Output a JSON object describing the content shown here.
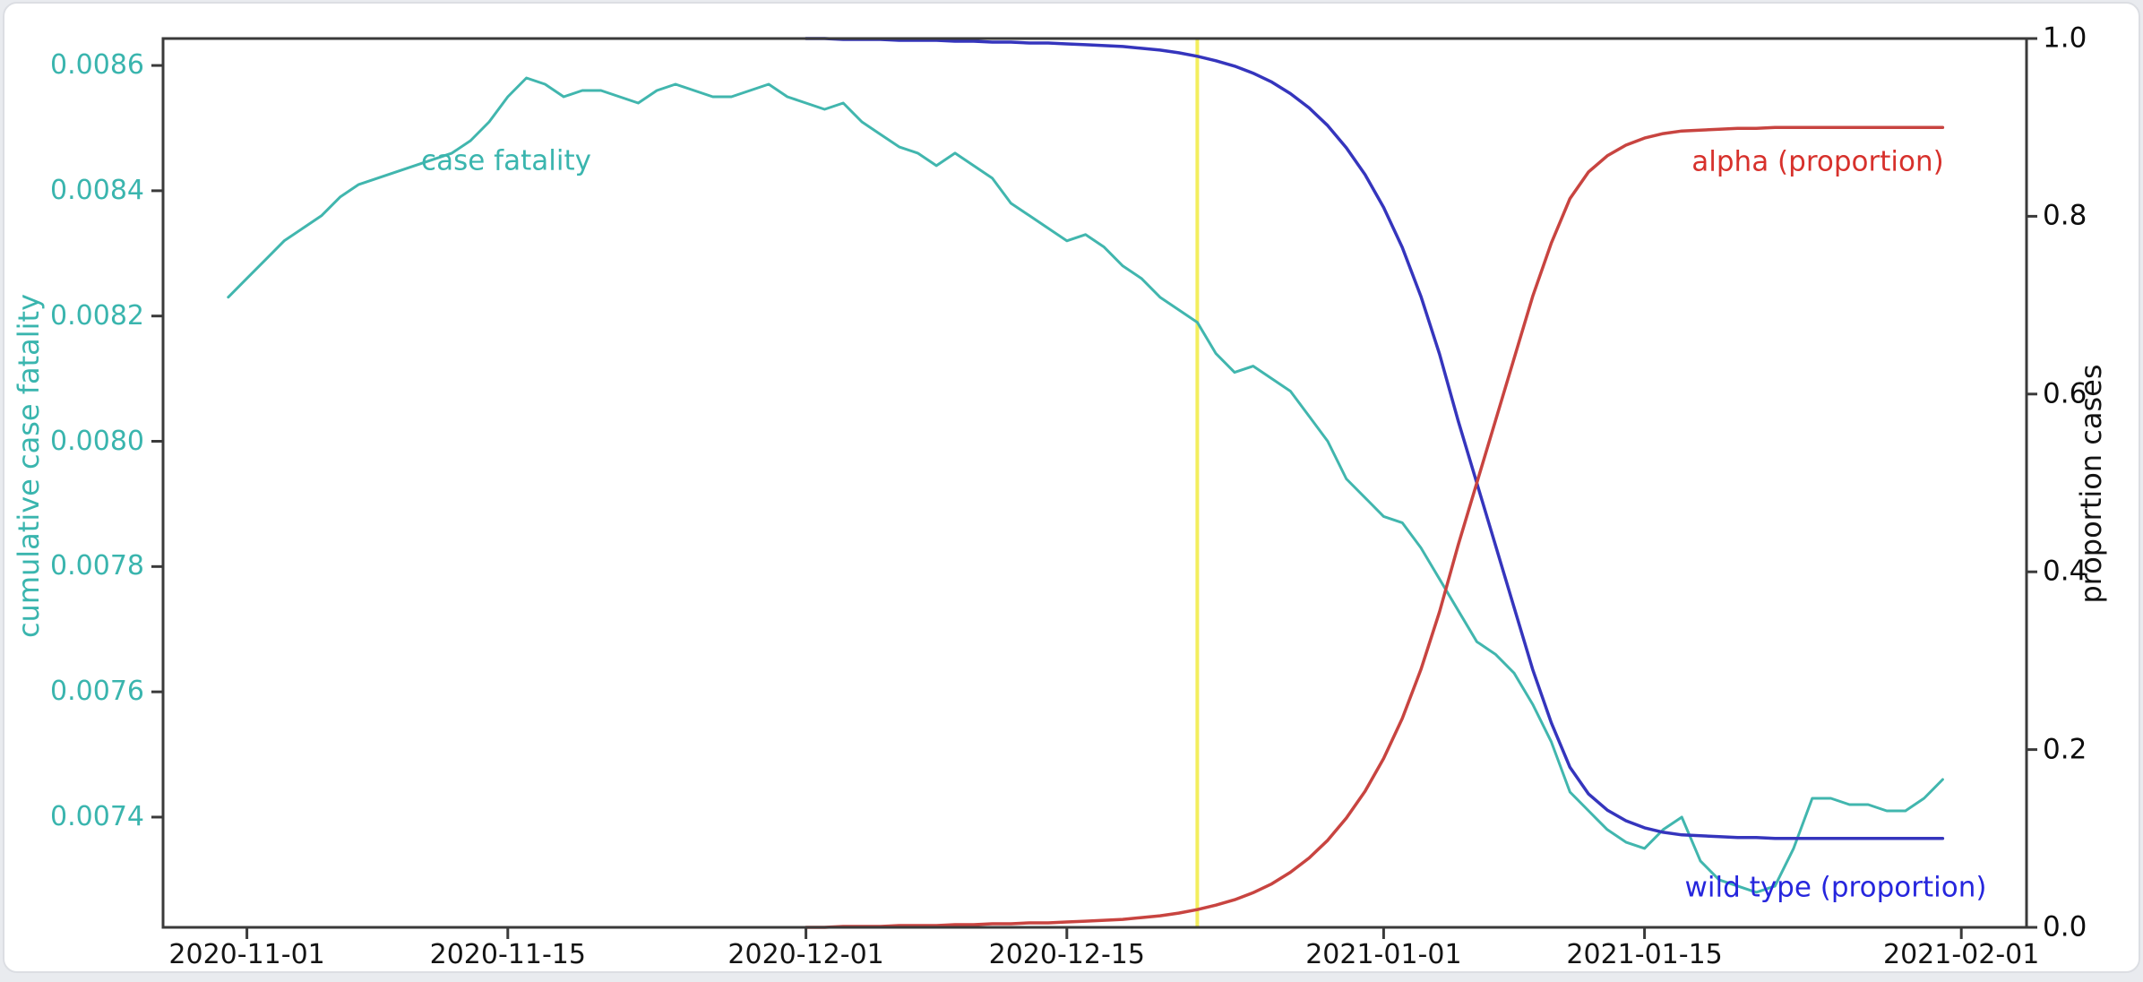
{
  "chart_data": {
    "type": "line",
    "title": "",
    "xlabel": "",
    "ylabel_left": "cumulative case fatality",
    "ylabel_right": "proportion cases",
    "xlim": [
      "2020-10-27T12:00:00Z",
      "2021-02-04T12:00:00Z"
    ],
    "ylim_left": [
      0.007224,
      0.008643
    ],
    "ylim_right": [
      0.0,
      1.0
    ],
    "grid": false,
    "x_ticks": [
      "2020-11-01",
      "2020-11-15",
      "2020-12-01",
      "2020-12-15",
      "2021-01-01",
      "2021-01-15",
      "2021-02-01"
    ],
    "y_ticks_left": [
      {
        "value": 0.0086,
        "label": "0.0086"
      },
      {
        "value": 0.0084,
        "label": "0.0084"
      },
      {
        "value": 0.0082,
        "label": "0.0082"
      },
      {
        "value": 0.008,
        "label": "0.0080"
      },
      {
        "value": 0.0078,
        "label": "0.0078"
      },
      {
        "value": 0.0076,
        "label": "0.0076"
      },
      {
        "value": 0.0074,
        "label": "0.0074"
      }
    ],
    "y_ticks_right": [
      {
        "value": 1.0,
        "label": "1.0"
      },
      {
        "value": 0.8,
        "label": "0.8"
      },
      {
        "value": 0.6,
        "label": "0.6"
      },
      {
        "value": 0.4,
        "label": "0.4"
      },
      {
        "value": 0.2,
        "label": "0.2"
      },
      {
        "value": 0.0,
        "label": "0.0"
      }
    ],
    "vline": {
      "date": "2020-12-22T00:00:00Z",
      "color": "#f3ee5e"
    },
    "colors": {
      "case_fatality": "#41b6ae",
      "wild_type": "#3535bd",
      "alpha": "#c84440",
      "axis": "#3a3a3a",
      "left_axis_text": "#3ab5ae",
      "tick_text": "#141414",
      "alpha_label": "#d7312c",
      "wild_type_label": "#2626dd",
      "vline": "#f3ee5e"
    },
    "annotations": [
      {
        "id": "case_fatality",
        "text": "case fatality"
      },
      {
        "id": "alpha",
        "text": "alpha (proportion)"
      },
      {
        "id": "wild_type",
        "text": "wild type (proportion)"
      }
    ],
    "series": [
      {
        "name": "case fatality",
        "axis": "left",
        "color_key": "case_fatality",
        "x_start": "2020-10-31T00:00:00Z",
        "x_step_days": 1,
        "values": [
          0.00823,
          0.00826,
          0.00829,
          0.00832,
          0.00834,
          0.00836,
          0.00839,
          0.00841,
          0.00842,
          0.00843,
          0.00844,
          0.00845,
          0.00846,
          0.00848,
          0.00851,
          0.00855,
          0.00858,
          0.00857,
          0.00855,
          0.00856,
          0.00856,
          0.00855,
          0.00854,
          0.00856,
          0.00857,
          0.00856,
          0.00855,
          0.00855,
          0.00856,
          0.00857,
          0.00855,
          0.00854,
          0.00853,
          0.00854,
          0.00851,
          0.00849,
          0.00847,
          0.00846,
          0.00844,
          0.00846,
          0.00844,
          0.00842,
          0.00838,
          0.00836,
          0.00834,
          0.00832,
          0.00833,
          0.00831,
          0.00828,
          0.00826,
          0.00823,
          0.00821,
          0.00819,
          0.00814,
          0.00811,
          0.00812,
          0.0081,
          0.00808,
          0.00804,
          0.008,
          0.00794,
          0.00791,
          0.00788,
          0.00787,
          0.00783,
          0.00778,
          0.00773,
          0.00768,
          0.00766,
          0.00763,
          0.00758,
          0.00752,
          0.00744,
          0.00741,
          0.00738,
          0.00736,
          0.00735,
          0.00738,
          0.0074,
          0.00733,
          0.0073,
          0.00729,
          0.00728,
          0.00729,
          0.00735,
          0.00743,
          0.00743,
          0.00742,
          0.00742,
          0.00741,
          0.00741,
          0.00743,
          0.00746
        ]
      },
      {
        "name": "wild type (proportion)",
        "axis": "right",
        "color_key": "wild_type",
        "x_start": "2020-12-01T00:00:00Z",
        "x_step_days": 1,
        "values": [
          1.0,
          1.0,
          0.999,
          0.999,
          0.999,
          0.998,
          0.998,
          0.998,
          0.997,
          0.997,
          0.996,
          0.996,
          0.995,
          0.995,
          0.994,
          0.993,
          0.992,
          0.991,
          0.989,
          0.987,
          0.984,
          0.98,
          0.975,
          0.969,
          0.961,
          0.951,
          0.938,
          0.922,
          0.902,
          0.877,
          0.847,
          0.81,
          0.765,
          0.71,
          0.645,
          0.57,
          0.5,
          0.43,
          0.36,
          0.29,
          0.23,
          0.18,
          0.15,
          0.132,
          0.12,
          0.112,
          0.107,
          0.104,
          0.103,
          0.102,
          0.101,
          0.101,
          0.1,
          0.1,
          0.1,
          0.1,
          0.1,
          0.1,
          0.1,
          0.1,
          0.1,
          0.1
        ]
      },
      {
        "name": "alpha (proportion)",
        "axis": "right",
        "color_key": "alpha",
        "x_start": "2020-12-01T00:00:00Z",
        "x_step_days": 1,
        "values": [
          0.0,
          0.0,
          0.001,
          0.001,
          0.001,
          0.002,
          0.002,
          0.002,
          0.003,
          0.003,
          0.004,
          0.004,
          0.005,
          0.005,
          0.006,
          0.007,
          0.008,
          0.009,
          0.011,
          0.013,
          0.016,
          0.02,
          0.025,
          0.031,
          0.039,
          0.049,
          0.062,
          0.078,
          0.098,
          0.123,
          0.153,
          0.19,
          0.235,
          0.29,
          0.355,
          0.43,
          0.5,
          0.57,
          0.64,
          0.71,
          0.77,
          0.82,
          0.85,
          0.868,
          0.88,
          0.888,
          0.893,
          0.896,
          0.897,
          0.898,
          0.899,
          0.899,
          0.9,
          0.9,
          0.9,
          0.9,
          0.9,
          0.9,
          0.9,
          0.9,
          0.9,
          0.9
        ]
      }
    ]
  }
}
